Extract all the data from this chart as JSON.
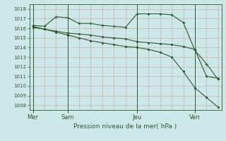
{
  "title": "Pression niveau de la mer( hPa )",
  "bg_color": "#cce8e8",
  "line_color": "#2d5a2d",
  "grid_color": "#d4a0a0",
  "ylim": [
    1007.5,
    1018.5
  ],
  "yticks": [
    1008,
    1009,
    1010,
    1011,
    1012,
    1013,
    1014,
    1015,
    1016,
    1017,
    1018
  ],
  "day_labels": [
    "Mer",
    "Sam",
    "Jeu",
    "Ven"
  ],
  "day_positions": [
    0,
    3,
    9,
    14
  ],
  "xlim": [
    -0.3,
    16.3
  ],
  "line1_x": [
    0,
    1,
    2,
    3,
    4,
    5,
    6,
    7,
    8,
    9,
    10,
    11,
    12,
    13,
    14,
    15,
    16
  ],
  "line1_y": [
    1016.3,
    1016.2,
    1017.2,
    1017.1,
    1016.5,
    1016.5,
    1016.3,
    1016.2,
    1016.1,
    1017.5,
    1017.5,
    1017.5,
    1017.4,
    1016.6,
    1013.7,
    1012.3,
    1010.7
  ],
  "line2_x": [
    0,
    1,
    2,
    3,
    4,
    5,
    6,
    7,
    8,
    9,
    10,
    11,
    12,
    13,
    14,
    15,
    16
  ],
  "line2_y": [
    1016.1,
    1015.9,
    1015.7,
    1015.5,
    1015.4,
    1015.3,
    1015.1,
    1015.0,
    1014.9,
    1014.6,
    1014.5,
    1014.4,
    1014.3,
    1014.1,
    1013.8,
    1011.0,
    1010.8
  ],
  "line3_x": [
    0,
    1,
    2,
    3,
    4,
    5,
    6,
    7,
    8,
    9,
    10,
    11,
    12,
    13,
    14,
    15,
    16
  ],
  "line3_y": [
    1016.2,
    1015.9,
    1015.6,
    1015.3,
    1015.0,
    1014.7,
    1014.5,
    1014.3,
    1014.1,
    1014.0,
    1013.8,
    1013.5,
    1013.0,
    1011.5,
    1009.8,
    1008.8,
    1007.8
  ],
  "ylabel_fontsize": 5.0,
  "xlabel_fontsize": 6.0,
  "title_fontsize": 6.5
}
